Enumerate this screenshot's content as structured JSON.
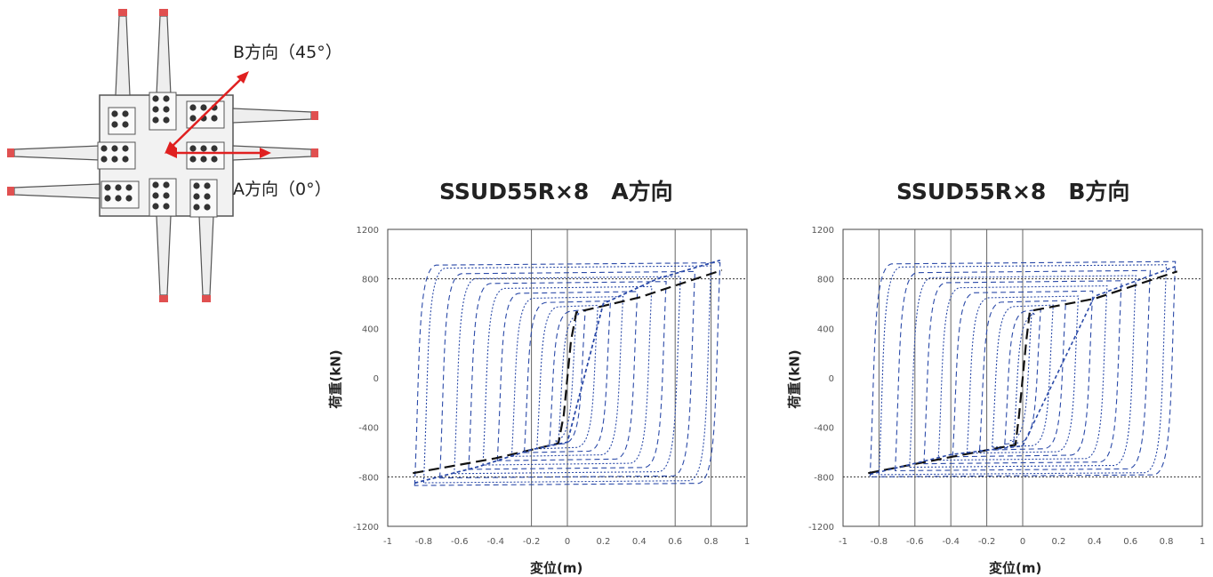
{
  "diagram": {
    "label_b": "B方向（45°）",
    "label_a": "A方向（0°）",
    "colors": {
      "arrow": "#e02020",
      "plate": "#f2f2f2",
      "outline": "#555555",
      "bolt": "#333333",
      "tip": "#e05050"
    }
  },
  "chart_data": [
    {
      "type": "line",
      "title": "SSUD55R×8　A方向",
      "xlabel": "変位(m)",
      "ylabel": "荷重(kN)",
      "xlim": [
        -1,
        1
      ],
      "ylim": [
        -1200,
        1200
      ],
      "xticks": [
        "-1",
        "-0.8",
        "-0.6",
        "-0.4",
        "-0.2",
        "0",
        "0.2",
        "0.4",
        "0.6",
        "0.8",
        "1"
      ],
      "yticks": [
        "-1200",
        "-800",
        "-400",
        "0",
        "400",
        "800",
        "1200"
      ],
      "vgrid": [
        -0.2,
        0,
        0.6,
        0.8
      ],
      "hgrid": [
        -800,
        800
      ],
      "legend": "none",
      "series": [
        {
          "style": "black-dashed",
          "x": [
            -0.86,
            -0.4,
            -0.05,
            -0.02,
            0.02,
            0.05,
            0.4,
            0.86
          ],
          "y": [
            -770,
            -650,
            -530,
            -300,
            300,
            530,
            650,
            870
          ]
        },
        {
          "style": "blue-dashed",
          "x": [
            -0.85,
            -0.5,
            -0.2,
            0.0,
            0.2,
            0.5,
            0.85
          ],
          "y": [
            -850,
            -720,
            -580,
            -520,
            600,
            800,
            950
          ]
        },
        {
          "style": "blue-dashed",
          "x": [
            -0.85,
            -0.5,
            -0.2,
            0.0,
            0.2,
            0.5,
            0.85
          ],
          "y": [
            -850,
            -720,
            -580,
            -520,
            600,
            800,
            950
          ]
        }
      ],
      "loops": [
        0.05,
        0.1,
        0.17,
        0.24,
        0.31,
        0.39,
        0.47,
        0.55,
        0.63,
        0.71,
        0.8,
        0.85
      ],
      "ymax_env": 930,
      "ymin_env": -870
    },
    {
      "type": "line",
      "title": "SSUD55R×8　B方向",
      "xlabel": "変位(m)",
      "ylabel": "荷重(kN)",
      "xlim": [
        -1,
        1
      ],
      "ylim": [
        -1200,
        1200
      ],
      "xticks": [
        "-1",
        "-0.8",
        "-0.6",
        "-0.4",
        "-0.2",
        "0",
        "0.2",
        "0.4",
        "0.6",
        "0.8",
        "1"
      ],
      "yticks": [
        "-1200",
        "-800",
        "-400",
        "0",
        "400",
        "800",
        "1200"
      ],
      "vgrid": [
        -0.8,
        -0.6,
        -0.4,
        -0.2,
        0
      ],
      "hgrid": [
        -800,
        800
      ],
      "legend": "none",
      "series": [
        {
          "style": "black-dashed",
          "x": [
            -0.86,
            -0.4,
            -0.04,
            -0.02,
            0.02,
            0.04,
            0.4,
            0.86
          ],
          "y": [
            -770,
            -640,
            -540,
            -300,
            300,
            540,
            640,
            860
          ]
        },
        {
          "style": "blue-dashed",
          "x": [
            -0.85,
            -0.4,
            0.0,
            0.4,
            0.85
          ],
          "y": [
            -780,
            -620,
            -550,
            660,
            900
          ]
        }
      ],
      "loops": [
        0.05,
        0.1,
        0.17,
        0.24,
        0.31,
        0.39,
        0.47,
        0.55,
        0.63,
        0.71,
        0.8,
        0.85
      ],
      "ymax_env": 940,
      "ymin_env": -800
    }
  ]
}
